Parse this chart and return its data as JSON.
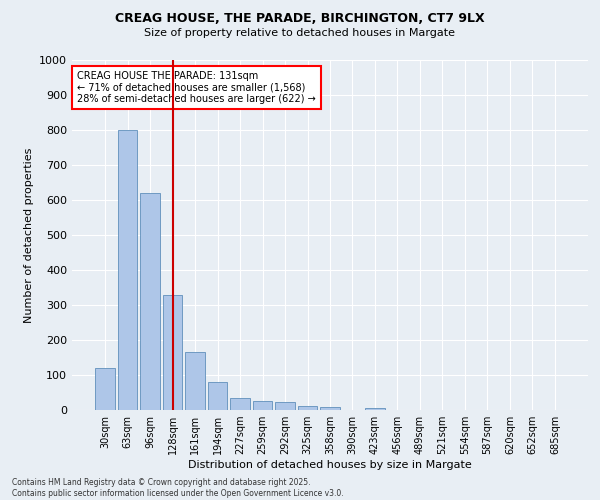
{
  "title_line1": "CREAG HOUSE, THE PARADE, BIRCHINGTON, CT7 9LX",
  "title_line2": "Size of property relative to detached houses in Margate",
  "xlabel": "Distribution of detached houses by size in Margate",
  "ylabel": "Number of detached properties",
  "categories": [
    "30sqm",
    "63sqm",
    "96sqm",
    "128sqm",
    "161sqm",
    "194sqm",
    "227sqm",
    "259sqm",
    "292sqm",
    "325sqm",
    "358sqm",
    "390sqm",
    "423sqm",
    "456sqm",
    "489sqm",
    "521sqm",
    "554sqm",
    "587sqm",
    "620sqm",
    "652sqm",
    "685sqm"
  ],
  "values": [
    120,
    800,
    620,
    330,
    165,
    80,
    35,
    25,
    22,
    12,
    8,
    0,
    5,
    0,
    0,
    0,
    0,
    0,
    0,
    0,
    0
  ],
  "bar_color": "#aec6e8",
  "bar_edge_color": "#6090bb",
  "highlight_color": "#cc0000",
  "vline_index": 3,
  "annotation_text": "CREAG HOUSE THE PARADE: 131sqm\n← 71% of detached houses are smaller (1,568)\n28% of semi-detached houses are larger (622) →",
  "annotation_box_color": "white",
  "annotation_box_edge_color": "red",
  "ylim": [
    0,
    1000
  ],
  "yticks": [
    0,
    100,
    200,
    300,
    400,
    500,
    600,
    700,
    800,
    900,
    1000
  ],
  "background_color": "#e8eef4",
  "footer_line1": "Contains HM Land Registry data © Crown copyright and database right 2025.",
  "footer_line2": "Contains public sector information licensed under the Open Government Licence v3.0."
}
